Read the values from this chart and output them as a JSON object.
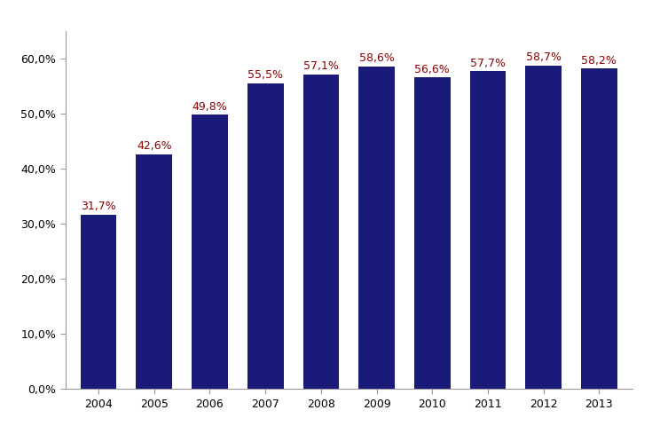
{
  "categories": [
    "2004",
    "2005",
    "2006",
    "2007",
    "2008",
    "2009",
    "2010",
    "2011",
    "2012",
    "2013"
  ],
  "values": [
    31.7,
    42.6,
    49.8,
    55.5,
    57.1,
    58.6,
    56.6,
    57.7,
    58.7,
    58.2
  ],
  "labels": [
    "31,7%",
    "42,6%",
    "49,8%",
    "55,5%",
    "57,1%",
    "58,6%",
    "56,6%",
    "57,7%",
    "58,7%",
    "58,2%"
  ],
  "bar_color": "#1a1a7a",
  "label_color": "#8B0000",
  "ylim": [
    0,
    65
  ],
  "yticks": [
    0,
    10,
    20,
    30,
    40,
    50,
    60
  ],
  "ytick_labels": [
    "0,0%",
    "10,0%",
    "20,0%",
    "30,0%",
    "40,0%",
    "50,0%",
    "60,0%"
  ],
  "background_color": "#ffffff",
  "label_fontsize": 9,
  "tick_fontsize": 9,
  "bar_width": 0.65,
  "spine_color": "#999999",
  "tick_color": "#999999"
}
